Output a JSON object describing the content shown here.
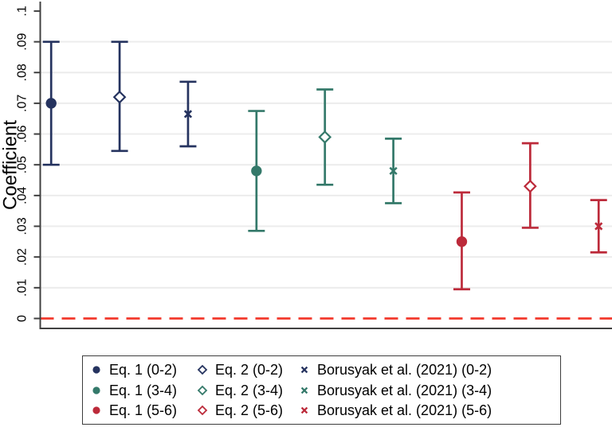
{
  "chart_data": {
    "type": "coefficient-plot",
    "title": "",
    "xlabel": "",
    "ylabel": "Coefficient",
    "yticks": [
      "0",
      ".01",
      ".02",
      ".03",
      ".04",
      ".05",
      ".06",
      ".07",
      ".08",
      ".09",
      ".1"
    ],
    "ytick_values": [
      0,
      0.01,
      0.02,
      0.03,
      0.04,
      0.05,
      0.06,
      0.07,
      0.08,
      0.09,
      0.1
    ],
    "ylim": [
      -0.003,
      0.103
    ],
    "grid": true,
    "legend_position": "bottom",
    "zero_line": {
      "value": 0,
      "style": "dashed",
      "color": "#f2392c"
    },
    "colors": {
      "axis": "#404040",
      "grid": "#ececec",
      "group_0_2": "#25335f",
      "group_3_4": "#34796a",
      "group_5_6": "#bc2a3a"
    },
    "series": [
      {
        "label": "Eq. 1 (0-2)",
        "marker": "circle-filled",
        "color": "#25335f",
        "estimate": 0.07,
        "ci_low": 0.05,
        "ci_high": 0.09
      },
      {
        "label": "Eq. 2 (0-2)",
        "marker": "diamond-hollow",
        "color": "#25335f",
        "estimate": 0.072,
        "ci_low": 0.0545,
        "ci_high": 0.09
      },
      {
        "label": "Borusyak et al. (2021) (0-2)",
        "marker": "x",
        "color": "#25335f",
        "estimate": 0.0665,
        "ci_low": 0.056,
        "ci_high": 0.077
      },
      {
        "label": "Eq. 1 (3-4)",
        "marker": "circle-filled",
        "color": "#34796a",
        "estimate": 0.048,
        "ci_low": 0.0285,
        "ci_high": 0.0675
      },
      {
        "label": "Eq. 2 (3-4)",
        "marker": "diamond-hollow",
        "color": "#34796a",
        "estimate": 0.059,
        "ci_low": 0.0435,
        "ci_high": 0.0745
      },
      {
        "label": "Borusyak et al. (2021) (3-4)",
        "marker": "x",
        "color": "#34796a",
        "estimate": 0.048,
        "ci_low": 0.0375,
        "ci_high": 0.0585
      },
      {
        "label": "Eq. 1 (5-6)",
        "marker": "circle-filled",
        "color": "#bc2a3a",
        "estimate": 0.025,
        "ci_low": 0.0095,
        "ci_high": 0.041
      },
      {
        "label": "Eq. 2 (5-6)",
        "marker": "diamond-hollow",
        "color": "#bc2a3a",
        "estimate": 0.043,
        "ci_low": 0.0295,
        "ci_high": 0.057
      },
      {
        "label": "Borusyak et al. (2021) (5-6)",
        "marker": "x",
        "color": "#bc2a3a",
        "estimate": 0.03,
        "ci_low": 0.0215,
        "ci_high": 0.0385
      }
    ]
  }
}
